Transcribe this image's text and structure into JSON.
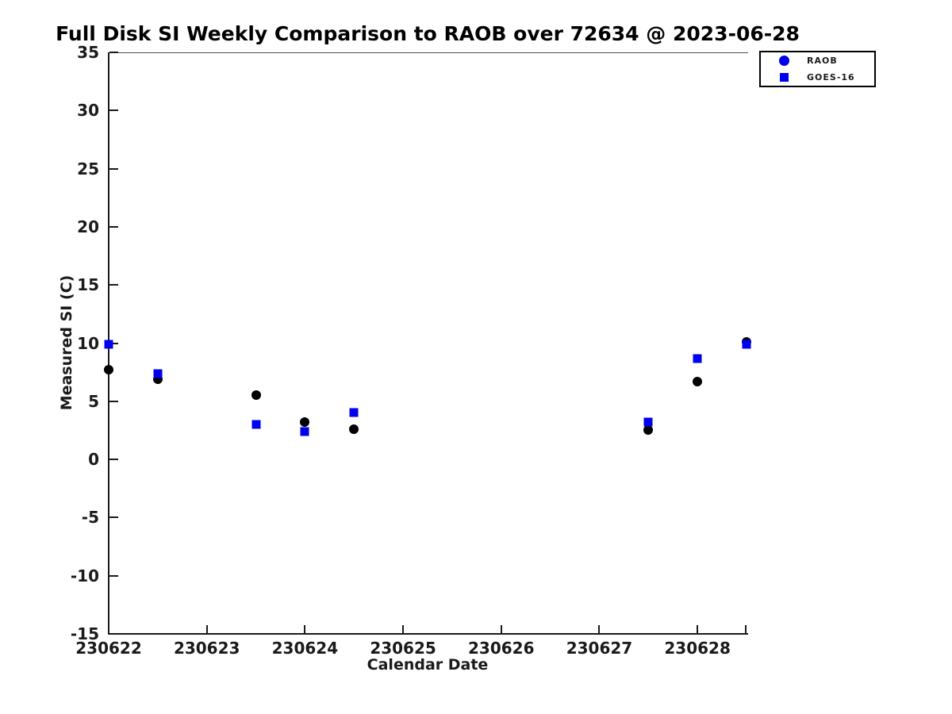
{
  "figure": {
    "background": "#ffffff",
    "axis_color": "#1a1a1a"
  },
  "chart_data": {
    "type": "scatter",
    "title": "Full Disk SI Weekly Comparison to RAOB over 72634 @ 2023-06-28",
    "xlabel": "Calendar Date",
    "ylabel": "Measured SI (C)",
    "xlim": [
      230622,
      230628.5
    ],
    "ylim": [
      -15,
      35
    ],
    "xticks": [
      230622,
      230623,
      230624,
      230625,
      230626,
      230627,
      230628
    ],
    "yticks": [
      35,
      30,
      25,
      20,
      15,
      10,
      5,
      0,
      -5,
      -10,
      -15
    ],
    "grid": false,
    "legend": {
      "position": "top-right",
      "entries": [
        {
          "label": "RAOB",
          "marker": "circle",
          "color": "#0000ee"
        },
        {
          "label": "GOES-16",
          "marker": "square",
          "color": "#0000ee"
        }
      ]
    },
    "series": [
      {
        "name": "RAOB",
        "marker": "circle",
        "color": "#000000",
        "x": [
          230622,
          230622.5,
          230623.5,
          230624,
          230624.5,
          230627.5,
          230628,
          230628.5
        ],
        "y": [
          7.7,
          6.9,
          5.5,
          3.2,
          2.6,
          2.5,
          6.7,
          10.1
        ]
      },
      {
        "name": "GOES-16",
        "marker": "square",
        "color": "#0000ee",
        "x": [
          230622,
          230622.5,
          230623.5,
          230624,
          230624.5,
          230627.5,
          230628,
          230628.5
        ],
        "y": [
          9.9,
          7.4,
          3.0,
          2.4,
          4.0,
          3.2,
          8.7,
          9.9
        ]
      }
    ]
  }
}
